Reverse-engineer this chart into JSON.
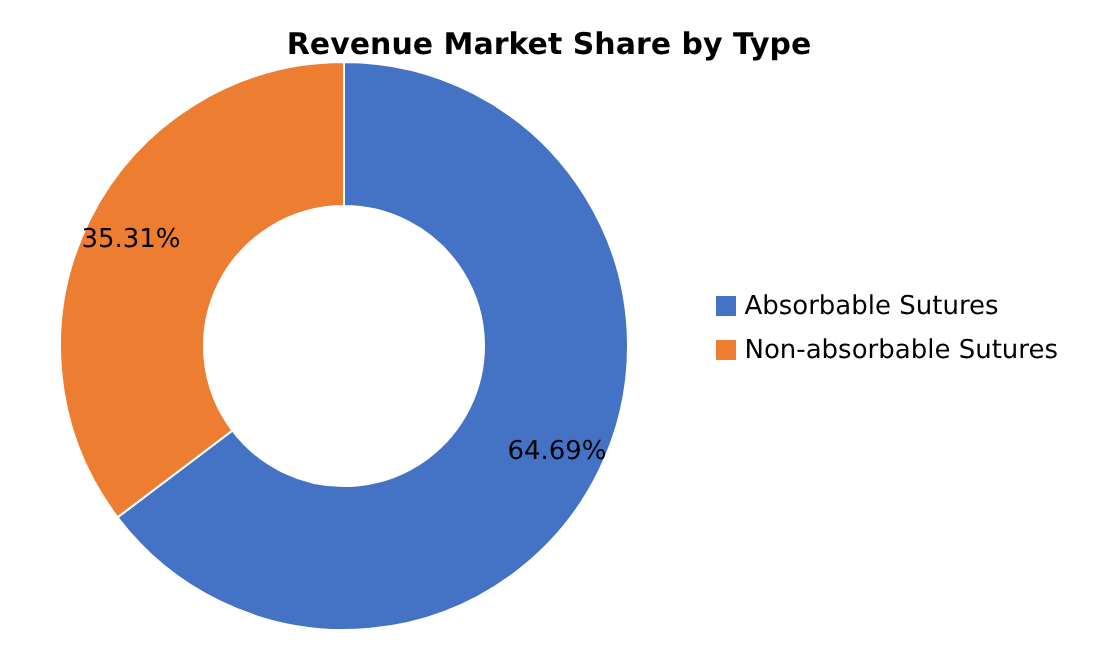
{
  "chart_data": {
    "type": "donut",
    "title": "Revenue Market Share by Type",
    "categories": [
      "Absorbable Sutures",
      "Non-absorbable Sutures"
    ],
    "values": [
      64.69,
      35.31
    ],
    "colors": [
      "#4472c4",
      "#ed7d31"
    ],
    "value_labels": [
      "64.69%",
      "35.31%"
    ],
    "legend": "right"
  }
}
